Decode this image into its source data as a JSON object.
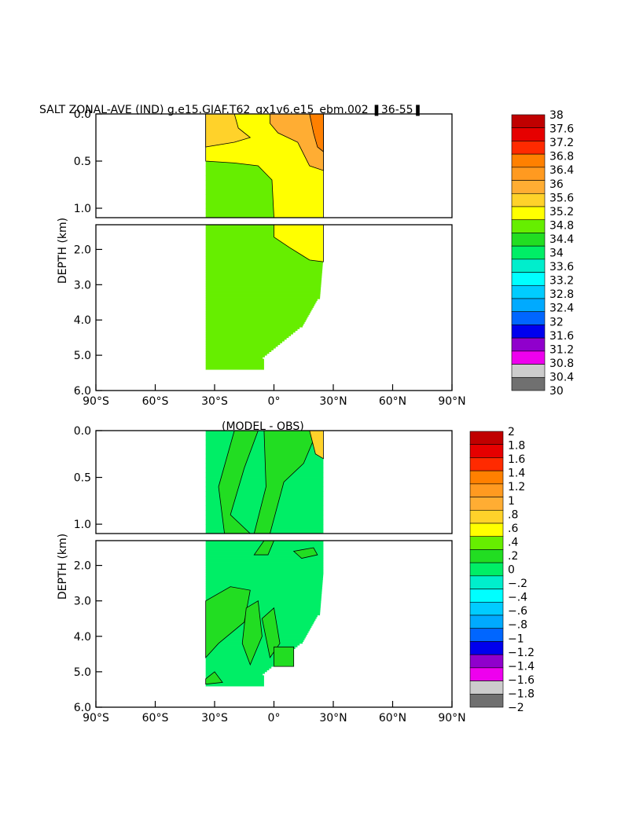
{
  "chart_data": [
    {
      "type": "heatmap",
      "title": "SALT ZONAL-AVE (IND) g.e15.GIAF.T62_gx1v6.e15_ebm.002 ❚36-55❚",
      "ylabel": "DEPTH (km)",
      "xlim": [
        -90,
        90
      ],
      "ylim": [
        0.0,
        6.0
      ],
      "x_ticks": [
        "90°S",
        "60°S",
        "30°S",
        "0°",
        "30°N",
        "60°N",
        "90°N"
      ],
      "y_ticks_upper": [
        "0.0",
        "0.5",
        "1.0"
      ],
      "y_ticks_lower": [
        "2.0",
        "3.0",
        "4.0",
        "5.0",
        "6.0"
      ],
      "colorbar_labels": [
        "38",
        "37.6",
        "37.2",
        "36.8",
        "36.4",
        "36",
        "35.6",
        "35.2",
        "34.8",
        "34.4",
        "34",
        "33.6",
        "33.2",
        "32.8",
        "32.4",
        "32",
        "31.6",
        "31.2",
        "30.8",
        "30.4",
        "30"
      ],
      "colors": [
        "#c00000",
        "#e60000",
        "#ff2a00",
        "#ff8000",
        "#ff9a20",
        "#ffad33",
        "#ffd22a",
        "#ffff00",
        "#66ee00",
        "#22dd22",
        "#00ee66",
        "#00eecc",
        "#00ffff",
        "#00ccff",
        "#00aaff",
        "#0066ff",
        "#0000ee",
        "#9000cc",
        "#ee00ee",
        "#cccccc",
        "#707070"
      ],
      "region_values": {
        "deep_ocean": 34.6,
        "upper_ocean": 35.0,
        "surface_south": 35.3,
        "north_upper": 35.8,
        "north_coast": 36.6
      }
    },
    {
      "type": "heatmap",
      "title": "(MODEL - OBS)",
      "ylabel": "DEPTH (km)",
      "xlim": [
        -90,
        90
      ],
      "ylim": [
        0.0,
        6.0
      ],
      "x_ticks": [
        "90°S",
        "60°S",
        "30°S",
        "0°",
        "30°N",
        "60°N",
        "90°N"
      ],
      "y_ticks_upper": [
        "0.0",
        "0.5",
        "1.0"
      ],
      "y_ticks_lower": [
        "2.0",
        "3.0",
        "4.0",
        "5.0",
        "6.0"
      ],
      "colorbar_labels": [
        "2",
        "1.8",
        "1.6",
        "1.4",
        "1.2",
        "1",
        ".8",
        ".6",
        ".4",
        ".2",
        "0",
        "−.2",
        "−.4",
        "−.6",
        "−.8",
        "−1",
        "−1.2",
        "−1.4",
        "−1.6",
        "−1.8",
        "−2"
      ],
      "colors": [
        "#c00000",
        "#e60000",
        "#ff2a00",
        "#ff8000",
        "#ff9a20",
        "#ffad33",
        "#ffd22a",
        "#ffff00",
        "#66ee00",
        "#22dd22",
        "#00ee66",
        "#00eecc",
        "#00ffff",
        "#00ccff",
        "#00aaff",
        "#0066ff",
        "#0000ee",
        "#9000cc",
        "#ee00ee",
        "#cccccc",
        "#707070"
      ],
      "region_values": {
        "background": -0.1,
        "positive_patches": 0.1,
        "north_coast": 0.7
      }
    }
  ]
}
